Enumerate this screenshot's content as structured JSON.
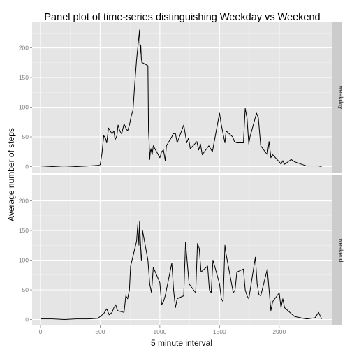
{
  "chart_data": {
    "type": "line",
    "title": "Panel plot of time-series distinguishing Weekday vs Weekend",
    "xlabel": "5 minute interval",
    "ylabel": "Average number of steps",
    "xlim": [
      -70,
      2440
    ],
    "ylim": [
      -10,
      243
    ],
    "x_ticks": [
      0,
      500,
      1000,
      1500,
      2000
    ],
    "y_ticks": [
      0,
      50,
      100,
      150,
      200
    ],
    "grid": true,
    "line_color": "#000000",
    "panels": [
      {
        "name": "weekday",
        "series": [
          {
            "x": [
              0,
              100,
              200,
              300,
              400,
              480,
              500,
              515,
              530,
              545,
              555,
              570,
              600,
              615,
              625,
              640,
              650,
              665,
              680,
              700,
              715,
              730,
              745,
              760,
              775,
              790,
              805,
              815,
              825,
              830,
              835,
              840,
              845,
              850,
              855,
              900,
              905,
              910,
              915,
              920,
              925,
              935,
              945,
              1000,
              1015,
              1030,
              1045,
              1055,
              1100,
              1110,
              1130,
              1145,
              1200,
              1215,
              1225,
              1240,
              1255,
              1310,
              1325,
              1340,
              1355,
              1410,
              1425,
              1440,
              1500,
              1515,
              1530,
              1545,
              1555,
              1610,
              1625,
              1645,
              1700,
              1715,
              1730,
              1745,
              1755,
              1810,
              1825,
              1845,
              1900,
              1915,
              1930,
              1945,
              2000,
              2015,
              2030,
              2045,
              2100,
              2130,
              2200,
              2230,
              2300,
              2330,
              2355
            ],
            "y": [
              1,
              0,
              1,
              0,
              1,
              2,
              3,
              22,
              52,
              48,
              40,
              65,
              55,
              60,
              45,
              52,
              70,
              60,
              55,
              72,
              65,
              60,
              70,
              85,
              95,
              140,
              180,
              200,
              220,
              230,
              190,
              205,
              182,
              175,
              175,
              170,
              60,
              42,
              12,
              25,
              30,
              20,
              35,
              15,
              25,
              28,
              10,
              35,
              50,
              55,
              56,
              40,
              70,
              52,
              40,
              48,
              30,
              42,
              28,
              38,
              20,
              35,
              30,
              25,
              90,
              70,
              55,
              40,
              60,
              50,
              42,
              40,
              40,
              98,
              82,
              38,
              50,
              90,
              82,
              35,
              20,
              42,
              15,
              20,
              8,
              4,
              10,
              4,
              12,
              8,
              3,
              1,
              1,
              1,
              0
            ]
          }
        ]
      },
      {
        "name": "weekend",
        "series": [
          {
            "x": [
              0,
              100,
              200,
              300,
              400,
              480,
              500,
              530,
              555,
              575,
              600,
              615,
              630,
              645,
              700,
              715,
              730,
              745,
              755,
              805,
              815,
              825,
              830,
              835,
              840,
              845,
              850,
              855,
              900,
              915,
              930,
              945,
              1000,
              1015,
              1030,
              1045,
              1100,
              1115,
              1130,
              1145,
              1200,
              1215,
              1230,
              1245,
              1300,
              1315,
              1330,
              1345,
              1400,
              1415,
              1430,
              1445,
              1500,
              1515,
              1530,
              1545,
              1555,
              1615,
              1630,
              1645,
              1700,
              1715,
              1730,
              1745,
              1800,
              1815,
              1830,
              1845,
              1900,
              1915,
              1930,
              1945,
              2000,
              2015,
              2030,
              2045,
              2100,
              2130,
              2200,
              2230,
              2300,
              2330,
              2355
            ],
            "y": [
              1,
              1,
              0,
              1,
              1,
              2,
              5,
              10,
              18,
              8,
              12,
              20,
              25,
              15,
              12,
              40,
              35,
              50,
              90,
              132,
              160,
              125,
              165,
              140,
              120,
              100,
              110,
              150,
              100,
              60,
              45,
              88,
              62,
              25,
              30,
              40,
              95,
              50,
              20,
              35,
              40,
              130,
              95,
              60,
              45,
              128,
              120,
              80,
              90,
              50,
              45,
              100,
              60,
              35,
              30,
              125,
              110,
              45,
              50,
              80,
              85,
              50,
              40,
              35,
              105,
              60,
              42,
              40,
              85,
              50,
              15,
              30,
              45,
              20,
              35,
              20,
              10,
              5,
              2,
              1,
              3,
              12,
              1
            ]
          }
        ]
      }
    ]
  }
}
